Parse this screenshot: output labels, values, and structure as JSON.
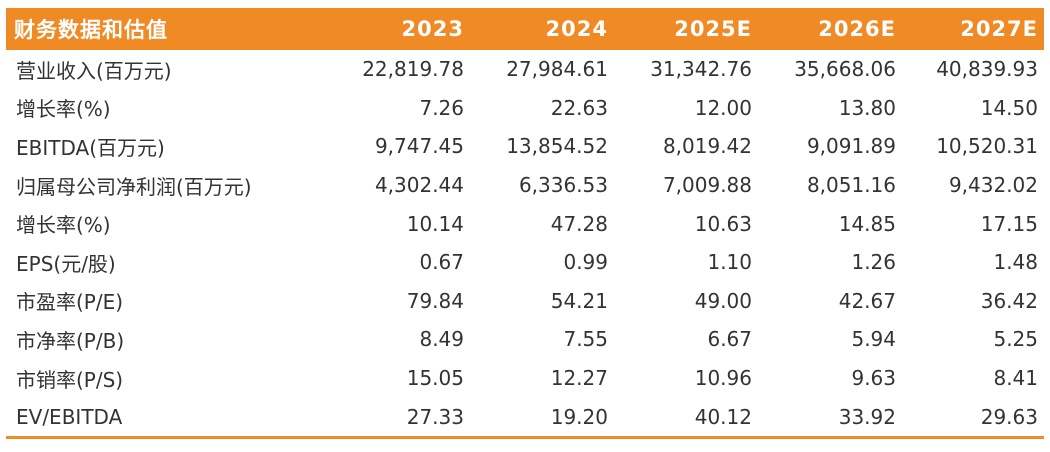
{
  "table": {
    "header": [
      "财务数据和估值",
      "2023",
      "2024",
      "2025E",
      "2026E",
      "2027E"
    ],
    "rows": [
      {
        "label": "营业收入(百万元)",
        "values": [
          "22,819.78",
          "27,984.61",
          "31,342.76",
          "35,668.06",
          "40,839.93"
        ]
      },
      {
        "label": "增长率(%)",
        "values": [
          "7.26",
          "22.63",
          "12.00",
          "13.80",
          "14.50"
        ]
      },
      {
        "label": "EBITDA(百万元)",
        "values": [
          "9,747.45",
          "13,854.52",
          "8,019.42",
          "9,091.89",
          "10,520.31"
        ]
      },
      {
        "label": "归属母公司净利润(百万元)",
        "values": [
          "4,302.44",
          "6,336.53",
          "7,009.88",
          "8,051.16",
          "9,432.02"
        ]
      },
      {
        "label": "增长率(%)",
        "values": [
          "10.14",
          "47.28",
          "10.63",
          "14.85",
          "17.15"
        ]
      },
      {
        "label": "EPS(元/股)",
        "values": [
          "0.67",
          "0.99",
          "1.10",
          "1.26",
          "1.48"
        ]
      },
      {
        "label": "市盈率(P/E)",
        "values": [
          "79.84",
          "54.21",
          "49.00",
          "42.67",
          "36.42"
        ]
      },
      {
        "label": "市净率(P/B)",
        "values": [
          "8.49",
          "7.55",
          "6.67",
          "5.94",
          "5.25"
        ]
      },
      {
        "label": "市销率(P/S)",
        "values": [
          "15.05",
          "12.27",
          "10.96",
          "9.63",
          "8.41"
        ]
      },
      {
        "label": "EV/EBITDA",
        "values": [
          "27.33",
          "19.20",
          "40.12",
          "33.92",
          "29.63"
        ]
      }
    ]
  },
  "colors": {
    "header_bg": "#F08A24",
    "header_text": "#FFFFFF",
    "body_text": "#333333",
    "bottom_rule": "#F08A24"
  }
}
